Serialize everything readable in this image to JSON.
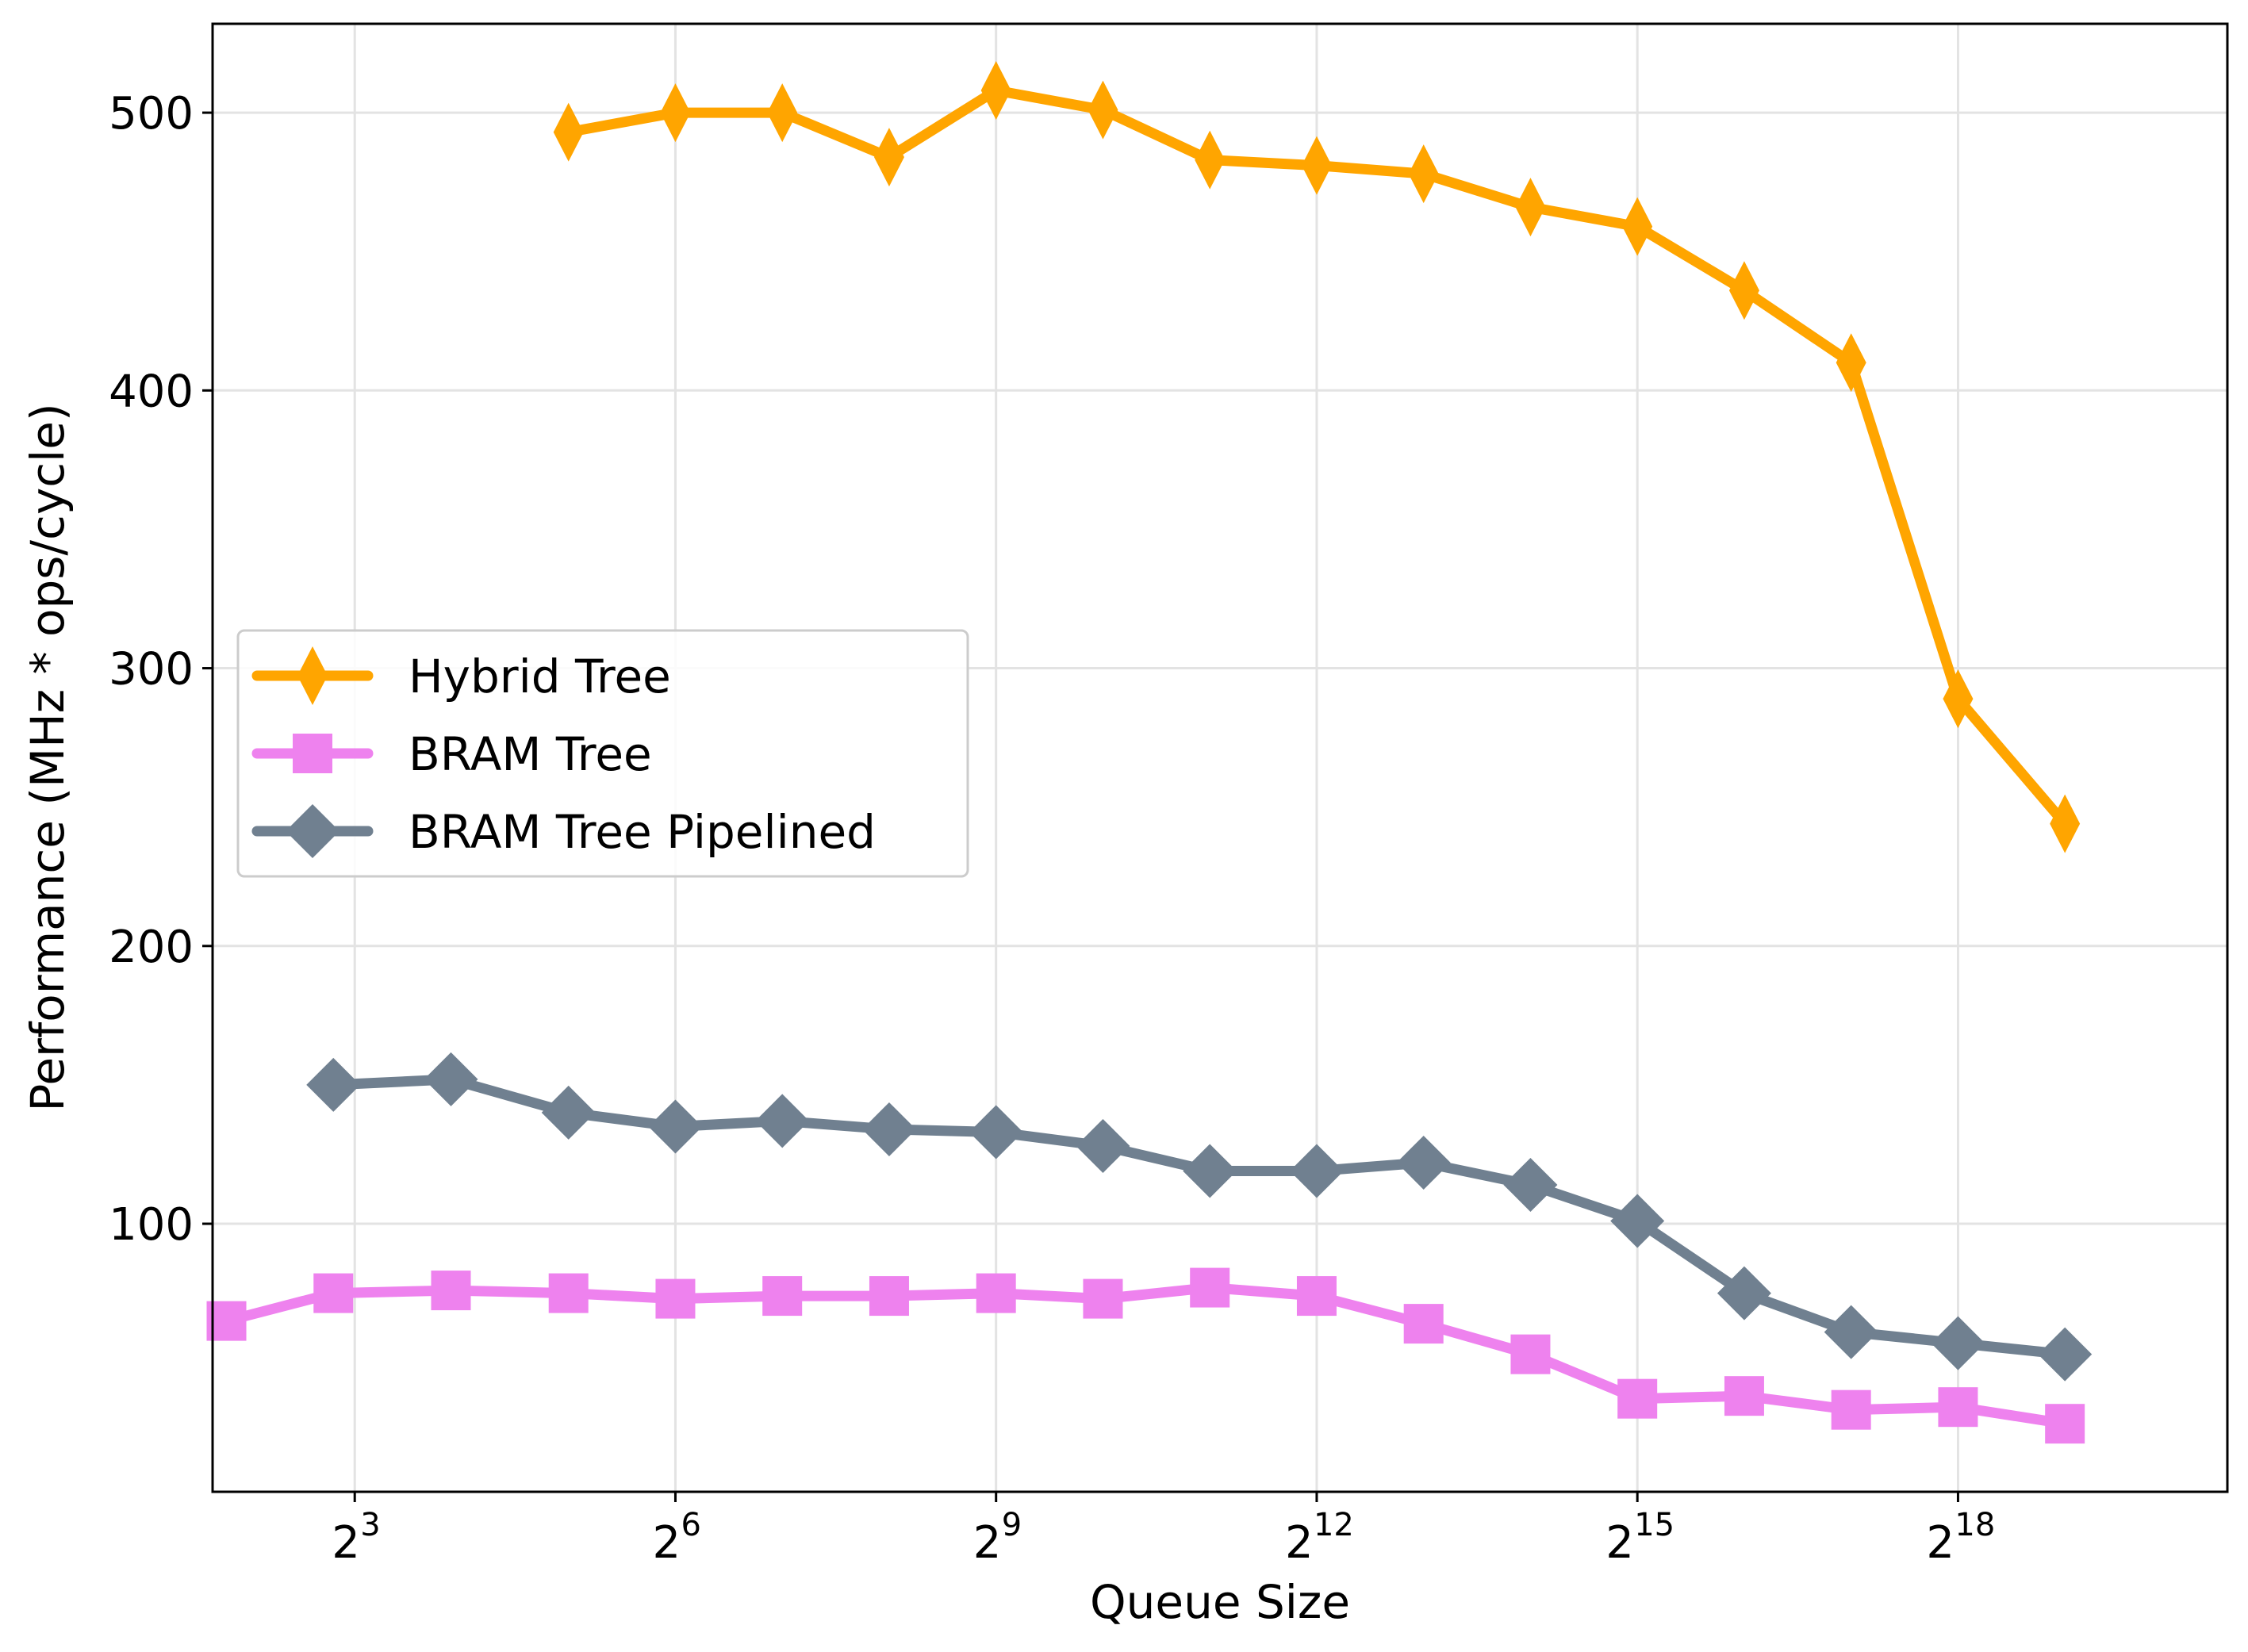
{
  "chart_data": {
    "type": "line",
    "xlabel": "Queue Size",
    "ylabel": "Performance (MHz * ops/cycle)",
    "xscale": "log2",
    "xlim": [
      1.67,
      20.52
    ],
    "ylim": [
      3.5,
      532
    ],
    "grid": true,
    "legend_position": "center-left",
    "xticks": [
      {
        "base": "2",
        "exp": "3",
        "value": 3
      },
      {
        "base": "2",
        "exp": "6",
        "value": 6
      },
      {
        "base": "2",
        "exp": "9",
        "value": 9
      },
      {
        "base": "2",
        "exp": "12",
        "value": 12
      },
      {
        "base": "2",
        "exp": "15",
        "value": 15
      },
      {
        "base": "2",
        "exp": "18",
        "value": 18
      }
    ],
    "yticks": [
      {
        "label": "100",
        "value": 100
      },
      {
        "label": "200",
        "value": 200
      },
      {
        "label": "300",
        "value": 300
      },
      {
        "label": "400",
        "value": 400
      },
      {
        "label": "500",
        "value": 500
      }
    ],
    "series": [
      {
        "name": "Hybrid Tree",
        "color": "#FFA500",
        "marker": "thin-diamond",
        "x": [
          5,
          6,
          7,
          8,
          9,
          10,
          11,
          12,
          13,
          14,
          15,
          16,
          17,
          18,
          19
        ],
        "y": [
          493,
          500,
          500,
          484,
          508,
          501,
          483,
          481,
          478,
          466,
          459,
          436,
          410,
          289,
          244
        ]
      },
      {
        "name": "BRAM Tree",
        "color": "#EE82EE",
        "marker": "square",
        "x": [
          1.8,
          2.8,
          3.9,
          5,
          6,
          7,
          8,
          9,
          10,
          11,
          12,
          13,
          14,
          15,
          16,
          17,
          18,
          19
        ],
        "y": [
          65,
          75,
          76,
          75,
          73,
          74,
          74,
          75,
          73,
          77,
          74,
          64,
          53,
          37,
          38,
          33,
          34,
          28
        ]
      },
      {
        "name": "BRAM Tree Pipelined",
        "color": "#708090",
        "marker": "diamond",
        "x": [
          2.8,
          3.9,
          5,
          6,
          7,
          8,
          9,
          10,
          11,
          12,
          13,
          14,
          15,
          16,
          17,
          18,
          19
        ],
        "y": [
          150,
          152,
          140,
          135,
          137,
          134,
          133,
          128,
          119,
          119,
          122,
          114,
          101,
          75,
          61,
          57,
          53
        ]
      }
    ]
  }
}
